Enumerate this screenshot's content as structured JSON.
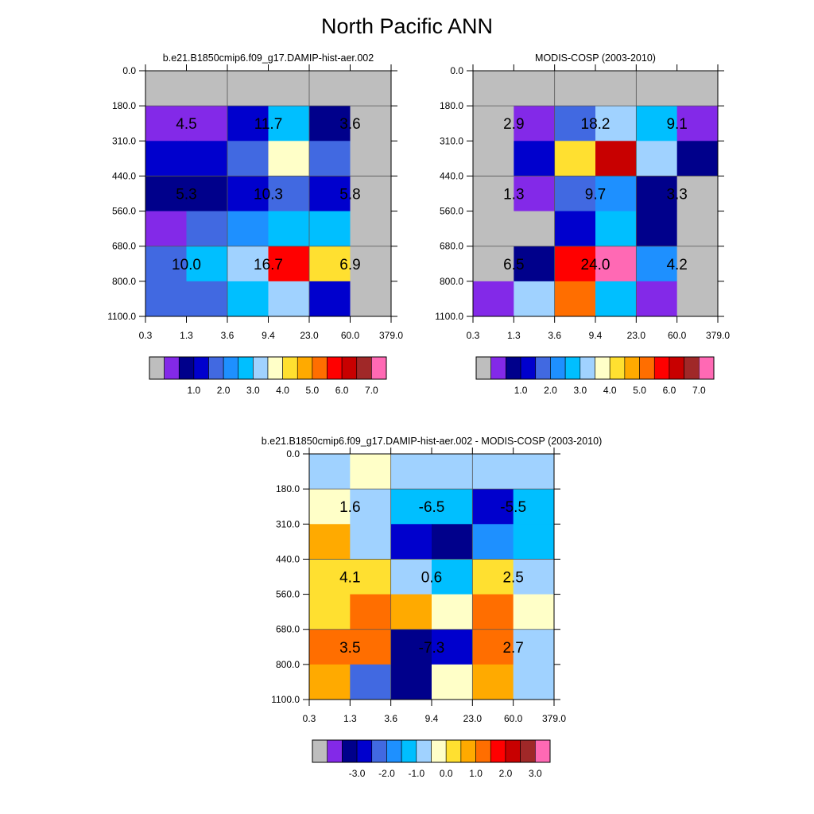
{
  "title": "North Pacific ANN",
  "tau_labels": [
    "0.3",
    "1.3",
    "3.6",
    "9.4",
    "23.0",
    "60.0",
    "379.0"
  ],
  "ctp_labels": [
    "0.0",
    "180.0",
    "310.0",
    "440.0",
    "560.0",
    "680.0",
    "800.0",
    "1100.0"
  ],
  "colorbars": {
    "abs": {
      "colors": [
        "#bebebe",
        "#8329e8",
        "#00008b",
        "#0000cd",
        "#4169e1",
        "#1e90ff",
        "#00bfff",
        "#a0d2ff",
        "#ffffc8",
        "#ffe030",
        "#ffaa00",
        "#ff6e00",
        "#ff0000",
        "#c80000",
        "#a02828",
        "#ff69b4"
      ],
      "labels": [
        "1.0",
        "2.0",
        "3.0",
        "4.0",
        "5.0",
        "6.0",
        "7.0"
      ]
    },
    "diff": {
      "colors": [
        "#bebebe",
        "#8329e8",
        "#00008b",
        "#0000cd",
        "#4169e1",
        "#1e90ff",
        "#00bfff",
        "#a0d2ff",
        "#ffffc8",
        "#ffe030",
        "#ffaa00",
        "#ff6e00",
        "#ff0000",
        "#c80000",
        "#a02828",
        "#ff69b4"
      ],
      "labels": [
        "-3.0",
        "-2.0",
        "-1.0",
        "0.0",
        "1.0",
        "2.0",
        "3.0"
      ]
    }
  },
  "chart_data": [
    {
      "type": "heatmap",
      "title": "b.e21.B1850cmip6.f09_g17.DAMIP-hist-aer.002",
      "colorbar": "abs",
      "x_tick_labels": [
        "0.3",
        "1.3",
        "3.6",
        "9.4",
        "23.0",
        "60.0",
        "379.0"
      ],
      "y_tick_labels": [
        "0.0",
        "180.0",
        "310.0",
        "440.0",
        "560.0",
        "680.0",
        "800.0",
        "1100.0"
      ],
      "cell_colors": [
        [
          "#bebebe",
          "#bebebe",
          "#bebebe",
          "#bebebe",
          "#bebebe",
          "#bebebe"
        ],
        [
          "#8329e8",
          "#8329e8",
          "#0000cd",
          "#00bfff",
          "#00008b",
          "#bebebe"
        ],
        [
          "#0000cd",
          "#0000cd",
          "#4169e1",
          "#ffffc8",
          "#4169e1",
          "#bebebe"
        ],
        [
          "#00008b",
          "#00008b",
          "#0000cd",
          "#4169e1",
          "#0000cd",
          "#bebebe"
        ],
        [
          "#8329e8",
          "#4169e1",
          "#1e90ff",
          "#00bfff",
          "#00bfff",
          "#bebebe"
        ],
        [
          "#4169e1",
          "#00bfff",
          "#a0d2ff",
          "#ff0000",
          "#ffe030",
          "#bebebe"
        ],
        [
          "#4169e1",
          "#4169e1",
          "#00bfff",
          "#a0d2ff",
          "#0000cd",
          "#bebebe"
        ]
      ],
      "annotations": [
        {
          "tau_bin": 0,
          "ctp_bin": 0,
          "text": "4.5"
        },
        {
          "tau_bin": 1,
          "ctp_bin": 0,
          "text": "11.7"
        },
        {
          "tau_bin": 2,
          "ctp_bin": 0,
          "text": "3.6"
        },
        {
          "tau_bin": 0,
          "ctp_bin": 1,
          "text": "5.3"
        },
        {
          "tau_bin": 1,
          "ctp_bin": 1,
          "text": "10.3"
        },
        {
          "tau_bin": 2,
          "ctp_bin": 1,
          "text": "5.8"
        },
        {
          "tau_bin": 0,
          "ctp_bin": 2,
          "text": "10.0"
        },
        {
          "tau_bin": 1,
          "ctp_bin": 2,
          "text": "16.7"
        },
        {
          "tau_bin": 2,
          "ctp_bin": 2,
          "text": "6.9"
        }
      ]
    },
    {
      "type": "heatmap",
      "title": "MODIS-COSP (2003-2010)",
      "colorbar": "abs",
      "x_tick_labels": [
        "0.3",
        "1.3",
        "3.6",
        "9.4",
        "23.0",
        "60.0",
        "379.0"
      ],
      "y_tick_labels": [
        "0.0",
        "180.0",
        "310.0",
        "440.0",
        "560.0",
        "680.0",
        "800.0",
        "1100.0"
      ],
      "cell_colors": [
        [
          "#bebebe",
          "#bebebe",
          "#bebebe",
          "#bebebe",
          "#bebebe",
          "#bebebe"
        ],
        [
          "#bebebe",
          "#8329e8",
          "#4169e1",
          "#a0d2ff",
          "#00bfff",
          "#8329e8"
        ],
        [
          "#bebebe",
          "#0000cd",
          "#ffe030",
          "#c80000",
          "#a0d2ff",
          "#00008b"
        ],
        [
          "#bebebe",
          "#8329e8",
          "#4169e1",
          "#1e90ff",
          "#00008b",
          "#bebebe"
        ],
        [
          "#bebebe",
          "#bebebe",
          "#0000cd",
          "#00bfff",
          "#00008b",
          "#bebebe"
        ],
        [
          "#bebebe",
          "#00008b",
          "#ff0000",
          "#ff69b4",
          "#1e90ff",
          "#bebebe"
        ],
        [
          "#8329e8",
          "#a0d2ff",
          "#ff6e00",
          "#00bfff",
          "#8329e8",
          "#bebebe"
        ]
      ],
      "annotations": [
        {
          "tau_bin": 0,
          "ctp_bin": 0,
          "text": "2.9"
        },
        {
          "tau_bin": 1,
          "ctp_bin": 0,
          "text": "18.2"
        },
        {
          "tau_bin": 2,
          "ctp_bin": 0,
          "text": "9.1"
        },
        {
          "tau_bin": 0,
          "ctp_bin": 1,
          "text": "1.3"
        },
        {
          "tau_bin": 1,
          "ctp_bin": 1,
          "text": "9.7"
        },
        {
          "tau_bin": 2,
          "ctp_bin": 1,
          "text": "3.3"
        },
        {
          "tau_bin": 0,
          "ctp_bin": 2,
          "text": "6.5"
        },
        {
          "tau_bin": 1,
          "ctp_bin": 2,
          "text": "24.0"
        },
        {
          "tau_bin": 2,
          "ctp_bin": 2,
          "text": "4.2"
        }
      ]
    },
    {
      "type": "heatmap",
      "title": "b.e21.B1850cmip6.f09_g17.DAMIP-hist-aer.002 - MODIS-COSP (2003-2010)",
      "colorbar": "diff",
      "x_tick_labels": [
        "0.3",
        "1.3",
        "3.6",
        "9.4",
        "23.0",
        "60.0",
        "379.0"
      ],
      "y_tick_labels": [
        "0.0",
        "180.0",
        "310.0",
        "440.0",
        "560.0",
        "680.0",
        "800.0",
        "1100.0"
      ],
      "cell_colors": [
        [
          "#a0d2ff",
          "#ffffc8",
          "#a0d2ff",
          "#a0d2ff",
          "#a0d2ff",
          "#a0d2ff"
        ],
        [
          "#ffffc8",
          "#a0d2ff",
          "#00bfff",
          "#00bfff",
          "#0000cd",
          "#00bfff"
        ],
        [
          "#ffaa00",
          "#a0d2ff",
          "#0000cd",
          "#00008b",
          "#1e90ff",
          "#00bfff"
        ],
        [
          "#ffe030",
          "#ffe030",
          "#a0d2ff",
          "#00bfff",
          "#ffe030",
          "#a0d2ff"
        ],
        [
          "#ffe030",
          "#ff6e00",
          "#ffaa00",
          "#ffffc8",
          "#ff6e00",
          "#ffffc8"
        ],
        [
          "#ff6e00",
          "#ff6e00",
          "#00008b",
          "#0000cd",
          "#ff6e00",
          "#a0d2ff"
        ],
        [
          "#ffaa00",
          "#4169e1",
          "#00008b",
          "#ffffc8",
          "#ffaa00",
          "#a0d2ff"
        ]
      ],
      "annotations": [
        {
          "tau_bin": 0,
          "ctp_bin": 0,
          "text": "1.6"
        },
        {
          "tau_bin": 1,
          "ctp_bin": 0,
          "text": "-6.5"
        },
        {
          "tau_bin": 2,
          "ctp_bin": 0,
          "text": "-5.5"
        },
        {
          "tau_bin": 0,
          "ctp_bin": 1,
          "text": "4.1"
        },
        {
          "tau_bin": 1,
          "ctp_bin": 1,
          "text": "0.6"
        },
        {
          "tau_bin": 2,
          "ctp_bin": 1,
          "text": "2.5"
        },
        {
          "tau_bin": 0,
          "ctp_bin": 2,
          "text": "3.5"
        },
        {
          "tau_bin": 1,
          "ctp_bin": 2,
          "text": "-7.3"
        },
        {
          "tau_bin": 2,
          "ctp_bin": 2,
          "text": "2.7"
        }
      ]
    }
  ]
}
